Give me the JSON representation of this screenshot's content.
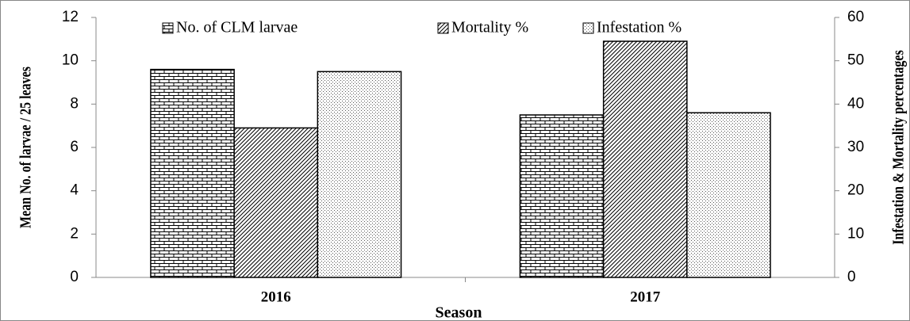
{
  "chart_data": {
    "type": "bar",
    "xlabel": "Season",
    "ylabel": "Mean No. of larvae / 25 leaves",
    "y2label": "Infestation & Mortality percentages",
    "categories": [
      "2016",
      "2017"
    ],
    "series": [
      {
        "name": "No. of CLM larvae",
        "color": "#000000",
        "pattern": "brick",
        "values": [
          9.6,
          7.5
        ]
      },
      {
        "name": "Mortality %",
        "color": "#000000",
        "pattern": "hatch",
        "axis": "y2",
        "values": [
          34.5,
          54.5
        ]
      },
      {
        "name": "Infestation %",
        "color": "#000000",
        "pattern": "dots",
        "axis": "y2",
        "values": [
          47.5,
          38
        ]
      }
    ],
    "ylim": [
      0,
      12
    ],
    "yticks": [
      0,
      2,
      4,
      6,
      8,
      10,
      12
    ],
    "y2lim": [
      0,
      60
    ],
    "y2ticks": [
      0,
      10,
      20,
      30,
      40,
      50,
      60
    ],
    "grid": false,
    "legend": "top"
  }
}
